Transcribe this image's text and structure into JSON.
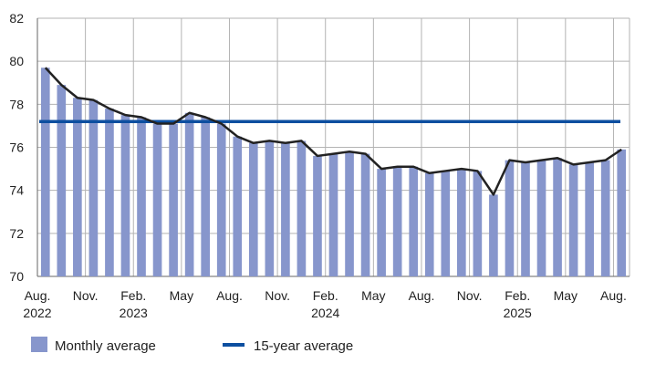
{
  "chart_data": {
    "type": "bar",
    "ylim": [
      70,
      82
    ],
    "yticks": [
      70,
      72,
      74,
      76,
      78,
      80,
      82
    ],
    "grid": true,
    "legend_position": "bottom-left",
    "x_tick_labels": [
      {
        "index": 0,
        "lines": [
          "Aug.",
          "2022"
        ]
      },
      {
        "index": 3,
        "lines": [
          "Nov."
        ]
      },
      {
        "index": 6,
        "lines": [
          "Feb.",
          "2023"
        ]
      },
      {
        "index": 9,
        "lines": [
          "May"
        ]
      },
      {
        "index": 12,
        "lines": [
          "Aug."
        ]
      },
      {
        "index": 15,
        "lines": [
          "Nov."
        ]
      },
      {
        "index": 18,
        "lines": [
          "Feb.",
          "2024"
        ]
      },
      {
        "index": 21,
        "lines": [
          "May"
        ]
      },
      {
        "index": 24,
        "lines": [
          "Aug."
        ]
      },
      {
        "index": 27,
        "lines": [
          "Nov."
        ]
      },
      {
        "index": 30,
        "lines": [
          "Feb.",
          "2025"
        ]
      },
      {
        "index": 33,
        "lines": [
          "May"
        ]
      },
      {
        "index": 36,
        "lines": [
          "Aug."
        ]
      }
    ],
    "series": [
      {
        "name": "Monthly average",
        "type": "bar",
        "color": "#8796cc",
        "values": [
          79.7,
          78.9,
          78.3,
          78.2,
          77.8,
          77.5,
          77.4,
          77.1,
          77.1,
          77.6,
          77.4,
          77.1,
          76.5,
          76.2,
          76.3,
          76.2,
          76.3,
          75.6,
          75.7,
          75.8,
          75.7,
          75.0,
          75.1,
          75.1,
          74.8,
          74.9,
          75.0,
          74.9,
          73.8,
          75.4,
          75.3,
          75.4,
          75.5,
          75.2,
          75.3,
          75.4,
          75.9
        ]
      },
      {
        "name": "",
        "type": "line",
        "color": "#222222",
        "values": [
          79.7,
          78.9,
          78.3,
          78.2,
          77.8,
          77.5,
          77.4,
          77.1,
          77.1,
          77.6,
          77.4,
          77.1,
          76.5,
          76.2,
          76.3,
          76.2,
          76.3,
          75.6,
          75.7,
          75.8,
          75.7,
          75.0,
          75.1,
          75.1,
          74.8,
          74.9,
          75.0,
          74.9,
          73.8,
          75.4,
          75.3,
          75.4,
          75.5,
          75.2,
          75.3,
          75.4,
          75.9
        ]
      },
      {
        "name": "15-year average",
        "type": "hline",
        "color": "#0d4fa0",
        "value": 77.2
      }
    ]
  }
}
